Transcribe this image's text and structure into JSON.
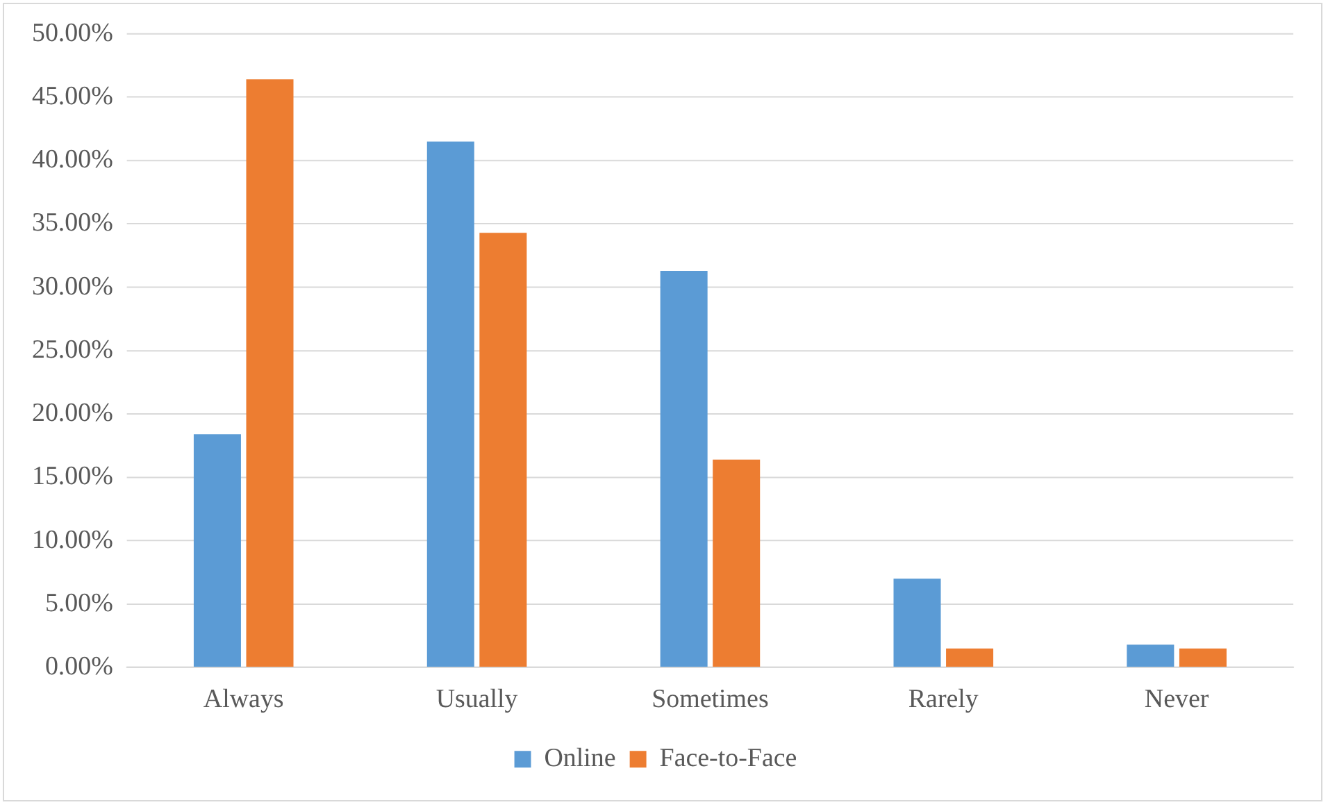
{
  "chart_data": {
    "type": "bar",
    "categories": [
      "Always",
      "Usually",
      "Sometimes",
      "Rarely",
      "Never"
    ],
    "series": [
      {
        "name": "Online",
        "color": "#5b9bd5",
        "values": [
          18.4,
          41.5,
          31.3,
          7.0,
          1.8
        ]
      },
      {
        "name": "Face-to-Face",
        "color": "#ed7d31",
        "values": [
          46.4,
          34.3,
          16.4,
          1.5,
          1.5
        ]
      }
    ],
    "ylim": [
      0,
      50
    ],
    "yticks": [
      {
        "value": 0,
        "label": "0.00%"
      },
      {
        "value": 5,
        "label": "5.00%"
      },
      {
        "value": 10,
        "label": "10.00%"
      },
      {
        "value": 15,
        "label": "15.00%"
      },
      {
        "value": 20,
        "label": "20.00%"
      },
      {
        "value": 25,
        "label": "25.00%"
      },
      {
        "value": 30,
        "label": "30.00%"
      },
      {
        "value": 35,
        "label": "35.00%"
      },
      {
        "value": 40,
        "label": "40.00%"
      },
      {
        "value": 45,
        "label": "45.00%"
      },
      {
        "value": 50,
        "label": "50.00%"
      }
    ],
    "grid": "y",
    "legend": "bottom"
  }
}
